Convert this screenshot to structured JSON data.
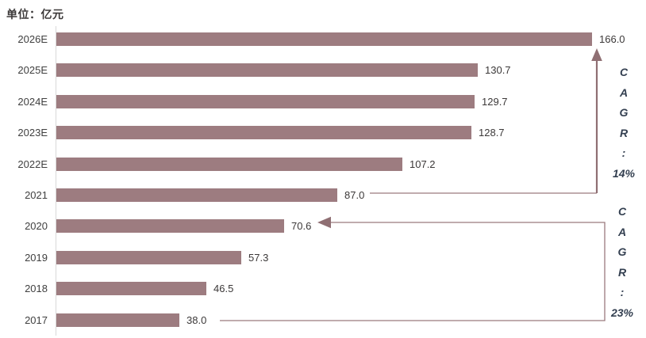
{
  "unit_label": "单位：亿元",
  "chart_data": {
    "type": "bar",
    "orientation": "horizontal",
    "title": "",
    "unit_label": "单位：亿元",
    "categories": [
      "2026E",
      "2025E",
      "2024E",
      "2023E",
      "2022E",
      "2021",
      "2020",
      "2019",
      "2018",
      "2017"
    ],
    "values": [
      166.0,
      130.7,
      129.7,
      128.7,
      107.2,
      87.0,
      70.6,
      57.3,
      46.5,
      38.0
    ],
    "value_labels": [
      "166.0",
      "130.7",
      "129.7",
      "128.7",
      "107.2",
      "87.0",
      "70.6",
      "57.3",
      "46.5",
      "38.0"
    ],
    "xlim": [
      0,
      183
    ],
    "grid": false,
    "legend": "none",
    "bar_color": "#9d7c80",
    "annotations": [
      {
        "id": "cagr-2021-2026",
        "text": "CAGR：14%",
        "letters": [
          "C",
          "A",
          "G",
          "R",
          ":",
          "14%"
        ],
        "from_category": "2021",
        "to_category": "2026E"
      },
      {
        "id": "cagr-2017-2020",
        "text": "CAGR：23%",
        "letters": [
          "C",
          "A",
          "G",
          "R",
          ":",
          "23%"
        ],
        "from_category": "2017",
        "to_category": "2020"
      }
    ]
  },
  "colors": {
    "bar": "#9d7c80",
    "connector_line": "#9a7a7e",
    "arrow_fill": "#8f6f73",
    "axis_line": "#d9d9d9",
    "category_text": "#404040",
    "value_text": "#3b3838",
    "title_text": "#3b3838",
    "cagr_text": "#333f50",
    "background": "#ffffff"
  }
}
